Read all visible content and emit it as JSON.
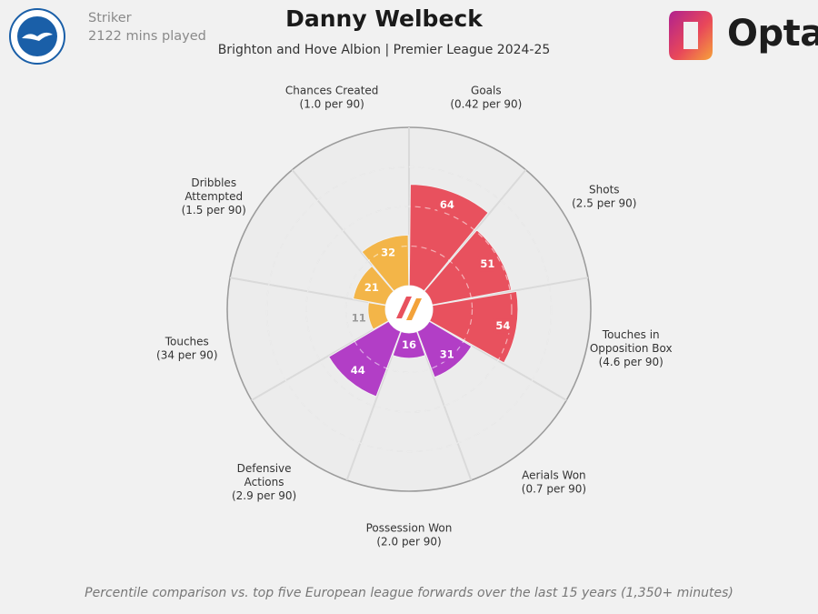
{
  "header": {
    "player_name": "Danny Welbeck",
    "subtitle": "Brighton and Hove Albion | Premier League 2024-25",
    "position": "Striker",
    "minutes": "2122 mins played",
    "club_badge_icon": "brighton-seagull-badge",
    "brand_logo": "opta-logo",
    "brand_name": "Opta"
  },
  "footnote": "Percentile comparison vs. top five European league forwards over the last 15 years (1,350+ minutes)",
  "colors": {
    "attacking": "#e8515e",
    "defending": "#b23ec6",
    "possession": "#f3b548",
    "badge_blue": "#1a5fa8",
    "background": "#f1f1f1"
  },
  "chart_data": {
    "type": "polar-bar",
    "rlim": [
      0,
      100
    ],
    "categories": [
      {
        "name": "Goals",
        "rate": "(0.42 per 90)",
        "percentile": 64,
        "group": "attacking"
      },
      {
        "name": "Shots",
        "rate": "(2.5 per 90)",
        "percentile": 51,
        "group": "attacking"
      },
      {
        "name": "Touches in\nOpposition Box",
        "rate": "(4.6 per 90)",
        "percentile": 54,
        "group": "attacking"
      },
      {
        "name": "Aerials Won",
        "rate": "(0.7 per 90)",
        "percentile": 31,
        "group": "defending"
      },
      {
        "name": "Possession Won",
        "rate": "(2.0 per 90)",
        "percentile": 16,
        "group": "defending"
      },
      {
        "name": "Defensive\nActions",
        "rate": "(2.9 per 90)",
        "percentile": 44,
        "group": "defending"
      },
      {
        "name": "Touches",
        "rate": "(34 per 90)",
        "percentile": 11,
        "group": "possession"
      },
      {
        "name": "Dribbles\nAttempted",
        "rate": "(1.5 per 90)",
        "percentile": 21,
        "group": "possession"
      },
      {
        "name": "Chances Created",
        "rate": "(1.0 per 90)",
        "percentile": 32,
        "group": "possession"
      }
    ]
  }
}
